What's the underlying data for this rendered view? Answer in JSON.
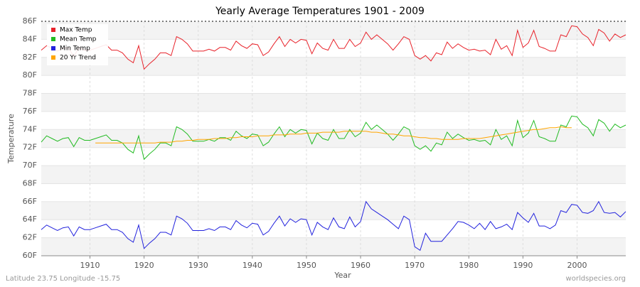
{
  "chart_data": {
    "type": "line",
    "title": "Yearly Average Temperatures 1901 - 2009",
    "xlabel": "Year",
    "ylabel": "Temperature",
    "footer_left": "Latitude 23.75 Longitude -15.75",
    "footer_right": "worldspecies.org",
    "legend": "upper left",
    "grid": true,
    "xlim": [
      1901,
      2009
    ],
    "xticks": [
      1910,
      1920,
      1930,
      1940,
      1950,
      1960,
      1970,
      1980,
      1990,
      2000
    ],
    "ylim": [
      60,
      86
    ],
    "yticks": [
      {
        "value": 60,
        "label": "60F"
      },
      {
        "value": 62,
        "label": "62F"
      },
      {
        "value": 64,
        "label": "64F"
      },
      {
        "value": 66,
        "label": "66F"
      },
      {
        "value": 68,
        "label": "68F"
      },
      {
        "value": 70,
        "label": "70F"
      },
      {
        "value": 72,
        "label": "72F"
      },
      {
        "value": 74,
        "label": "74F"
      },
      {
        "value": 76,
        "label": "76F"
      },
      {
        "value": 78,
        "label": "78F"
      },
      {
        "value": 80,
        "label": "80F"
      },
      {
        "value": 82,
        "label": "82F"
      },
      {
        "value": 84,
        "label": "84F"
      },
      {
        "value": 86,
        "label": "86F"
      }
    ],
    "x": [
      1901,
      1902,
      1903,
      1904,
      1905,
      1906,
      1907,
      1908,
      1909,
      1910,
      1911,
      1912,
      1913,
      1914,
      1915,
      1916,
      1917,
      1918,
      1919,
      1920,
      1921,
      1922,
      1923,
      1924,
      1925,
      1926,
      1927,
      1928,
      1929,
      1930,
      1931,
      1932,
      1933,
      1934,
      1935,
      1936,
      1937,
      1938,
      1939,
      1940,
      1941,
      1942,
      1943,
      1944,
      1945,
      1946,
      1947,
      1948,
      1949,
      1950,
      1951,
      1952,
      1953,
      1954,
      1955,
      1956,
      1957,
      1958,
      1959,
      1960,
      1961,
      1962,
      1963,
      1964,
      1965,
      1966,
      1967,
      1968,
      1969,
      1970,
      1971,
      1972,
      1973,
      1974,
      1975,
      1976,
      1977,
      1978,
      1979,
      1980,
      1981,
      1982,
      1983,
      1984,
      1985,
      1986,
      1987,
      1988,
      1989,
      1990,
      1991,
      1992,
      1993,
      1994,
      1995,
      1996,
      1997,
      1998,
      1999,
      2000,
      2001,
      2002,
      2003,
      2004,
      2005,
      2006,
      2007,
      2008,
      2009
    ],
    "series": [
      {
        "name": "Max Temp",
        "color": "#e8222a",
        "values": [
          82.8,
          83.3,
          83.0,
          82.7,
          83.0,
          83.1,
          82.1,
          83.1,
          82.8,
          82.8,
          83.0,
          83.2,
          83.4,
          82.8,
          82.8,
          82.5,
          81.8,
          81.4,
          83.3,
          80.7,
          81.3,
          81.8,
          82.5,
          82.5,
          82.2,
          84.3,
          84.0,
          83.5,
          82.7,
          82.7,
          82.7,
          82.9,
          82.7,
          83.1,
          83.1,
          82.8,
          83.8,
          83.3,
          83.0,
          83.5,
          83.4,
          82.2,
          82.6,
          83.5,
          84.3,
          83.2,
          84.0,
          83.6,
          84.0,
          83.9,
          82.4,
          83.6,
          83.0,
          82.8,
          84.0,
          83.0,
          83.0,
          84.0,
          83.2,
          83.6,
          84.8,
          84.0,
          84.5,
          84.0,
          83.5,
          82.8,
          83.5,
          84.3,
          84.0,
          82.2,
          81.8,
          82.2,
          81.6,
          82.5,
          82.3,
          83.7,
          83.0,
          83.5,
          83.1,
          82.8,
          82.9,
          82.7,
          82.8,
          82.3,
          84.0,
          82.9,
          83.3,
          82.2,
          85.0,
          83.1,
          83.6,
          85.0,
          83.2,
          83.0,
          82.7,
          82.7,
          84.5,
          84.3,
          85.5,
          85.4,
          84.6,
          84.2,
          83.3,
          85.1,
          84.7,
          83.8,
          84.6,
          84.2,
          84.5
        ]
      },
      {
        "name": "Mean Temp",
        "color": "#22bb22",
        "values": [
          72.6,
          73.3,
          73.0,
          72.7,
          73.0,
          73.1,
          72.1,
          73.1,
          72.8,
          72.8,
          73.0,
          73.2,
          73.4,
          72.8,
          72.8,
          72.5,
          71.8,
          71.4,
          73.3,
          70.7,
          71.3,
          71.8,
          72.5,
          72.5,
          72.2,
          74.3,
          74.0,
          73.5,
          72.7,
          72.7,
          72.7,
          72.9,
          72.7,
          73.1,
          73.1,
          72.8,
          73.8,
          73.3,
          73.0,
          73.5,
          73.4,
          72.2,
          72.6,
          73.5,
          74.3,
          73.2,
          74.0,
          73.6,
          74.0,
          73.9,
          72.4,
          73.6,
          73.0,
          72.8,
          74.0,
          73.0,
          73.0,
          74.0,
          73.2,
          73.6,
          74.8,
          74.0,
          74.5,
          74.0,
          73.5,
          72.8,
          73.5,
          74.3,
          74.0,
          72.2,
          71.8,
          72.2,
          71.6,
          72.5,
          72.3,
          73.7,
          73.0,
          73.5,
          73.1,
          72.8,
          72.9,
          72.7,
          72.8,
          72.3,
          74.0,
          72.9,
          73.3,
          72.2,
          75.0,
          73.1,
          73.6,
          75.0,
          73.2,
          73.0,
          72.7,
          72.7,
          74.5,
          74.3,
          75.5,
          75.4,
          74.6,
          74.2,
          73.3,
          75.1,
          74.7,
          73.8,
          74.6,
          74.2,
          74.5
        ]
      },
      {
        "name": "Min Temp",
        "color": "#2222dd",
        "values": [
          62.9,
          63.4,
          63.1,
          62.8,
          63.1,
          63.2,
          62.2,
          63.2,
          62.9,
          62.9,
          63.1,
          63.3,
          63.5,
          62.9,
          62.9,
          62.6,
          61.9,
          61.5,
          63.4,
          60.8,
          61.4,
          61.9,
          62.6,
          62.6,
          62.3,
          64.4,
          64.1,
          63.6,
          62.8,
          62.8,
          62.8,
          63.0,
          62.8,
          63.2,
          63.2,
          62.9,
          63.9,
          63.4,
          63.1,
          63.6,
          63.5,
          62.3,
          62.7,
          63.6,
          64.4,
          63.3,
          64.1,
          63.7,
          64.1,
          64.0,
          62.3,
          63.7,
          63.2,
          62.9,
          64.2,
          63.2,
          63.0,
          64.3,
          63.2,
          63.8,
          66.0,
          65.2,
          64.8,
          64.4,
          64.0,
          63.5,
          63.0,
          64.4,
          64.0,
          61.0,
          60.6,
          62.5,
          61.6,
          61.6,
          61.6,
          62.3,
          63.0,
          63.8,
          63.7,
          63.4,
          63.0,
          63.6,
          62.9,
          63.8,
          63.0,
          63.2,
          63.5,
          62.9,
          64.8,
          64.2,
          63.7,
          64.7,
          63.3,
          63.3,
          63.0,
          63.4,
          65.0,
          64.8,
          65.7,
          65.6,
          64.8,
          64.7,
          65.0,
          66.0,
          64.8,
          64.7,
          64.8,
          64.3,
          64.9
        ]
      },
      {
        "name": "20 Yr Trend",
        "color": "#ffa500",
        "values": [
          null,
          null,
          null,
          null,
          null,
          null,
          null,
          null,
          null,
          null,
          72.5,
          72.5,
          72.5,
          72.5,
          72.5,
          72.5,
          72.5,
          72.5,
          72.5,
          72.5,
          72.5,
          72.5,
          72.6,
          72.6,
          72.6,
          72.7,
          72.7,
          72.8,
          72.8,
          72.9,
          72.9,
          72.9,
          73.0,
          73.0,
          73.0,
          73.1,
          73.1,
          73.2,
          73.2,
          73.2,
          73.3,
          73.3,
          73.3,
          73.4,
          73.4,
          73.4,
          73.5,
          73.5,
          73.5,
          73.6,
          73.6,
          73.6,
          73.7,
          73.7,
          73.7,
          73.7,
          73.8,
          73.8,
          73.8,
          73.8,
          73.8,
          73.7,
          73.7,
          73.6,
          73.5,
          73.5,
          73.4,
          73.3,
          73.3,
          73.2,
          73.1,
          73.1,
          73.0,
          73.0,
          72.9,
          72.9,
          72.9,
          72.9,
          73.0,
          73.0,
          73.0,
          73.0,
          73.1,
          73.2,
          73.3,
          73.4,
          73.5,
          73.6,
          73.7,
          73.8,
          73.9,
          74.0,
          74.0,
          74.1,
          74.2,
          74.2,
          74.3,
          74.2,
          74.2,
          null,
          null,
          null,
          null,
          null,
          null,
          null,
          null,
          null,
          null
        ]
      }
    ]
  }
}
